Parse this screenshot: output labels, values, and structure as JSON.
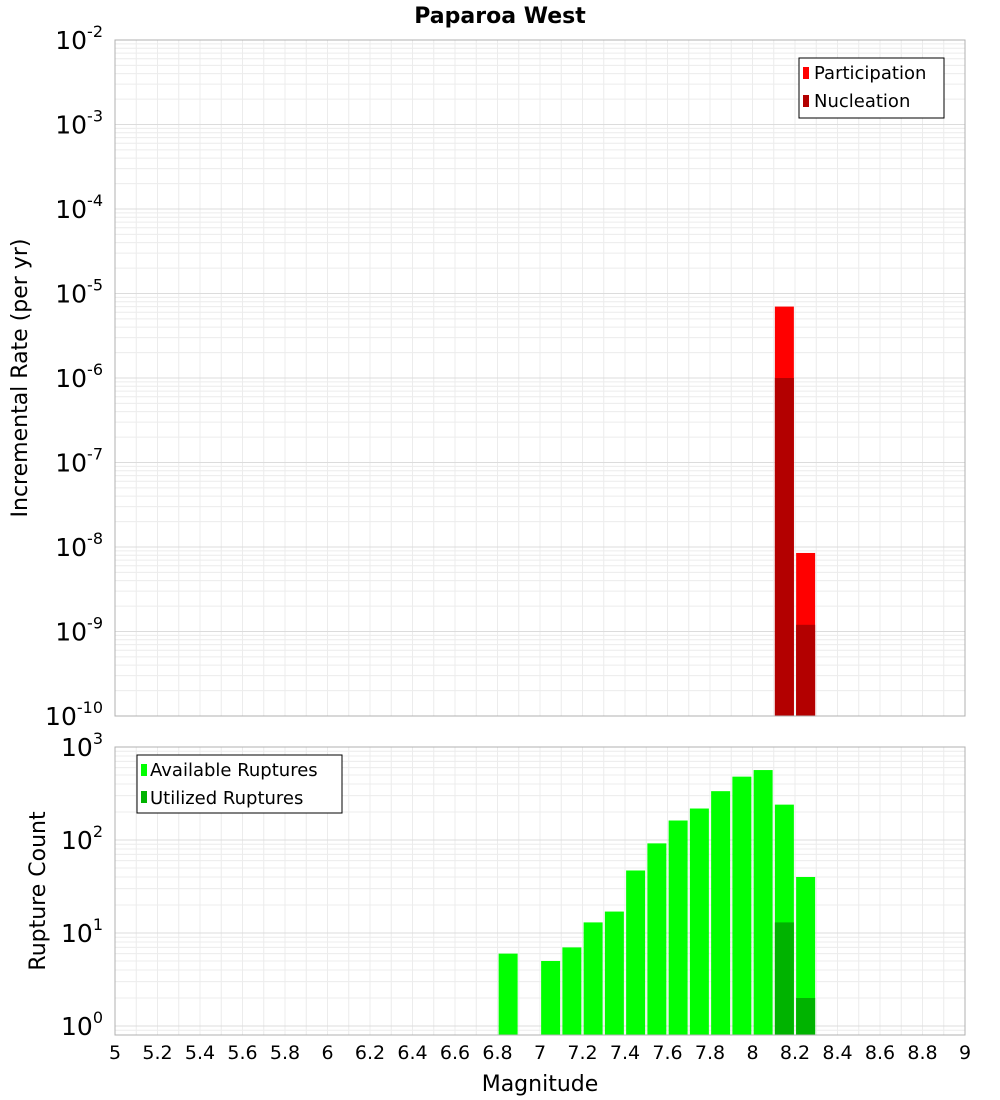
{
  "chart_data": [
    {
      "type": "bar",
      "title": "Paparoa West",
      "xlabel": "",
      "ylabel": "Incremental Rate (per yr)",
      "yscale": "log",
      "ylim": [
        1e-10,
        0.01
      ],
      "xlim": [
        5,
        9
      ],
      "grid": true,
      "legend_position": "top-right",
      "x": [
        8.15,
        8.25
      ],
      "series": [
        {
          "name": "Participation",
          "color": "#ff0000",
          "values": [
            7e-06,
            8.5e-09
          ]
        },
        {
          "name": "Nucleation",
          "color": "#b30000",
          "values": [
            1e-06,
            1.2e-09
          ]
        }
      ],
      "yticks": [
        {
          "base": "10",
          "exp": "-2"
        },
        {
          "base": "10",
          "exp": "-3"
        },
        {
          "base": "10",
          "exp": "-4"
        },
        {
          "base": "10",
          "exp": "-5"
        },
        {
          "base": "10",
          "exp": "-6"
        },
        {
          "base": "10",
          "exp": "-7"
        },
        {
          "base": "10",
          "exp": "-8"
        },
        {
          "base": "10",
          "exp": "-9"
        },
        {
          "base": "10",
          "exp": "-10"
        }
      ]
    },
    {
      "type": "bar",
      "title": "",
      "xlabel": "Magnitude",
      "ylabel": "Rupture Count",
      "yscale": "log",
      "ylim": [
        0.8,
        1000
      ],
      "xlim": [
        5,
        9
      ],
      "grid": true,
      "legend_position": "top-left",
      "x": [
        6.85,
        7.05,
        7.15,
        7.25,
        7.35,
        7.45,
        7.55,
        7.65,
        7.75,
        7.85,
        7.95,
        8.05,
        8.15,
        8.25
      ],
      "series": [
        {
          "name": "Available Ruptures",
          "color": "#00ff00",
          "values": [
            6,
            5,
            7,
            13,
            17,
            47,
            92,
            162,
            218,
            335,
            480,
            565,
            240,
            40
          ]
        },
        {
          "name": "Utilized Ruptures",
          "color": "#00b300",
          "values": [
            0,
            0,
            0,
            0,
            0,
            0,
            0,
            0,
            0,
            0,
            0,
            0,
            13,
            2
          ]
        }
      ],
      "xtick_labels": [
        "5",
        "5.2",
        "5.4",
        "5.6",
        "5.8",
        "6",
        "6.2",
        "6.4",
        "6.6",
        "6.8",
        "7",
        "7.2",
        "7.4",
        "7.6",
        "7.8",
        "8",
        "8.2",
        "8.4",
        "8.6",
        "8.8",
        "9"
      ],
      "yticks": [
        {
          "base": "10",
          "exp": "3"
        },
        {
          "base": "10",
          "exp": "2"
        },
        {
          "base": "10",
          "exp": "1"
        },
        {
          "base": "10",
          "exp": "0"
        }
      ]
    }
  ]
}
